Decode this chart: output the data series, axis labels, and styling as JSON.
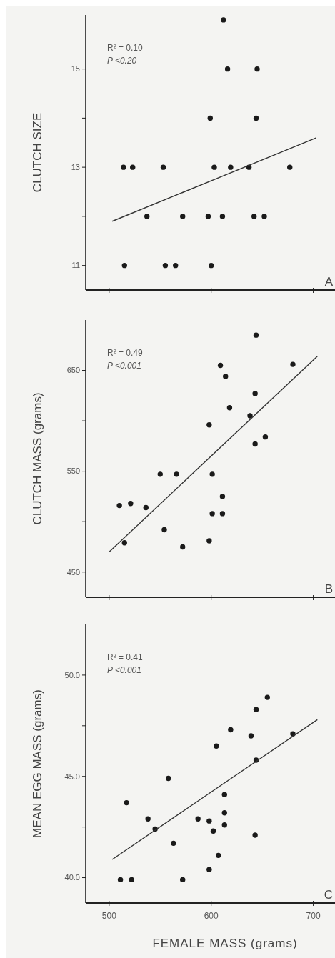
{
  "chart_data": [
    {
      "type": "scatter",
      "ylabel": "CLUTCH SIZE",
      "xlim": [
        477,
        722
      ],
      "ylim": [
        10.5,
        16.1
      ],
      "xticks": [
        500,
        600,
        700
      ],
      "yticks": [
        11,
        {
          "value": 12,
          "label": null
        },
        13,
        {
          "value": 14,
          "label": null
        },
        15
      ],
      "tick_labels": "y",
      "grid": false,
      "annotations": [
        "R² = 0.10",
        "P <0.20",
        "A"
      ],
      "series": [
        {
          "marker": "circle",
          "color": "#1a1a1a",
          "x": [
            612,
            616,
            645,
            599,
            644,
            514,
            523,
            553,
            603,
            619,
            637,
            677,
            537,
            572,
            597,
            611,
            642,
            652,
            515,
            555,
            565,
            600
          ],
          "values": [
            16,
            15,
            15,
            14,
            14,
            13,
            13,
            13,
            13,
            13,
            13,
            13,
            12,
            12,
            12,
            12,
            12,
            12,
            11,
            11,
            11,
            11
          ]
        },
        {
          "type": "line",
          "marker": "none",
          "color": "#333333",
          "line_style": "solid",
          "x": [
            503,
            703
          ],
          "values": [
            11.9,
            13.6
          ]
        }
      ]
    },
    {
      "type": "scatter",
      "ylabel": "CLUTCH MASS (grams)",
      "xlim": [
        477,
        722
      ],
      "ylim": [
        425,
        700
      ],
      "xticks": [
        500,
        600,
        700
      ],
      "yticks": [
        450,
        {
          "value": 500,
          "label": null
        },
        550,
        {
          "value": 600,
          "label": null
        },
        650
      ],
      "tick_labels": "y",
      "grid": false,
      "annotations": [
        "R² = 0.49",
        "P <0.001",
        "B"
      ],
      "series": [
        {
          "marker": "circle",
          "color": "#1a1a1a",
          "x": [
            644,
            609,
            680,
            614,
            643,
            618,
            638,
            598,
            653,
            643,
            550,
            566,
            601,
            611,
            510,
            521,
            536,
            601,
            611,
            554,
            515,
            598,
            572
          ],
          "values": [
            685,
            655,
            656,
            644,
            627,
            613,
            605,
            596,
            584,
            577,
            547,
            547,
            547,
            525,
            516,
            518,
            514,
            508,
            508,
            492,
            479,
            481,
            475
          ]
        },
        {
          "type": "line",
          "marker": "none",
          "color": "#333333",
          "line_style": "solid",
          "x": [
            500,
            704
          ],
          "values": [
            470,
            664
          ]
        }
      ]
    },
    {
      "type": "scatter",
      "ylabel": "MEAN EGG MASS (grams)",
      "xlabel": "FEMALE MASS (grams)",
      "xlim": [
        477,
        722
      ],
      "ylim": [
        38.75,
        52.5
      ],
      "xticks": [
        500,
        600,
        700
      ],
      "yticks": [
        {
          "value": 40,
          "label": "40.0"
        },
        {
          "value": 42.5,
          "label": null
        },
        {
          "value": 45,
          "label": "45.0"
        },
        {
          "value": 47.5,
          "label": null
        },
        {
          "value": 50,
          "label": "50.0"
        }
      ],
      "grid": false,
      "annotations": [
        "R² = 0.41",
        "P <0.001",
        "C"
      ],
      "series": [
        {
          "marker": "circle",
          "color": "#1a1a1a",
          "x": [
            655,
            644,
            619,
            639,
            680,
            605,
            644,
            558,
            613,
            517,
            613,
            538,
            587,
            598,
            545,
            613,
            602,
            643,
            563,
            607,
            598,
            511,
            522,
            572
          ],
          "values": [
            48.9,
            48.3,
            47.3,
            47.0,
            47.1,
            46.5,
            45.8,
            44.9,
            44.1,
            43.7,
            43.2,
            42.9,
            42.9,
            42.8,
            42.4,
            42.6,
            42.3,
            42.1,
            41.7,
            41.1,
            40.4,
            39.9,
            39.9,
            39.9
          ]
        },
        {
          "type": "line",
          "marker": "none",
          "color": "#333333",
          "line_style": "solid",
          "x": [
            503,
            704
          ],
          "values": [
            40.9,
            47.8
          ]
        }
      ]
    }
  ]
}
